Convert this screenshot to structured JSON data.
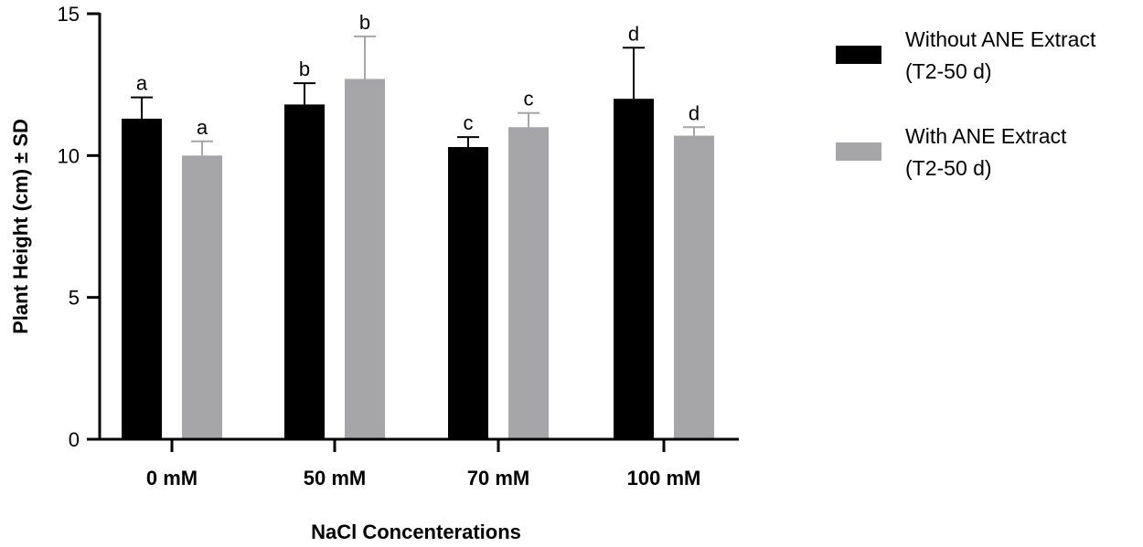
{
  "chart_data": {
    "type": "bar",
    "title": "",
    "xlabel": "NaCl Concenterations",
    "ylabel": "Plant Height (cm) ± SD",
    "ylim": [
      0,
      15
    ],
    "yticks": [
      "0",
      "5",
      "10",
      "15"
    ],
    "categories": [
      "0 mM",
      "50 mM",
      "70 mM",
      "100 mM"
    ],
    "series": [
      {
        "name_line1": "Without ANE Extract",
        "name_line2": "(T2-50 d)",
        "color": "#000000",
        "values": [
          11.3,
          11.8,
          10.3,
          12.0
        ],
        "errors": [
          0.75,
          0.75,
          0.35,
          1.8
        ],
        "labels": [
          "a",
          "b",
          "c",
          "d"
        ]
      },
      {
        "name_line1": "With ANE Extract",
        "name_line2": "(T2-50 d)",
        "color": "#a6a6a8",
        "values": [
          10.0,
          12.7,
          11.0,
          10.7
        ],
        "errors": [
          0.5,
          1.5,
          0.5,
          0.3
        ],
        "labels": [
          "a",
          "b",
          "c",
          "d"
        ]
      }
    ],
    "legend_position": "right"
  }
}
